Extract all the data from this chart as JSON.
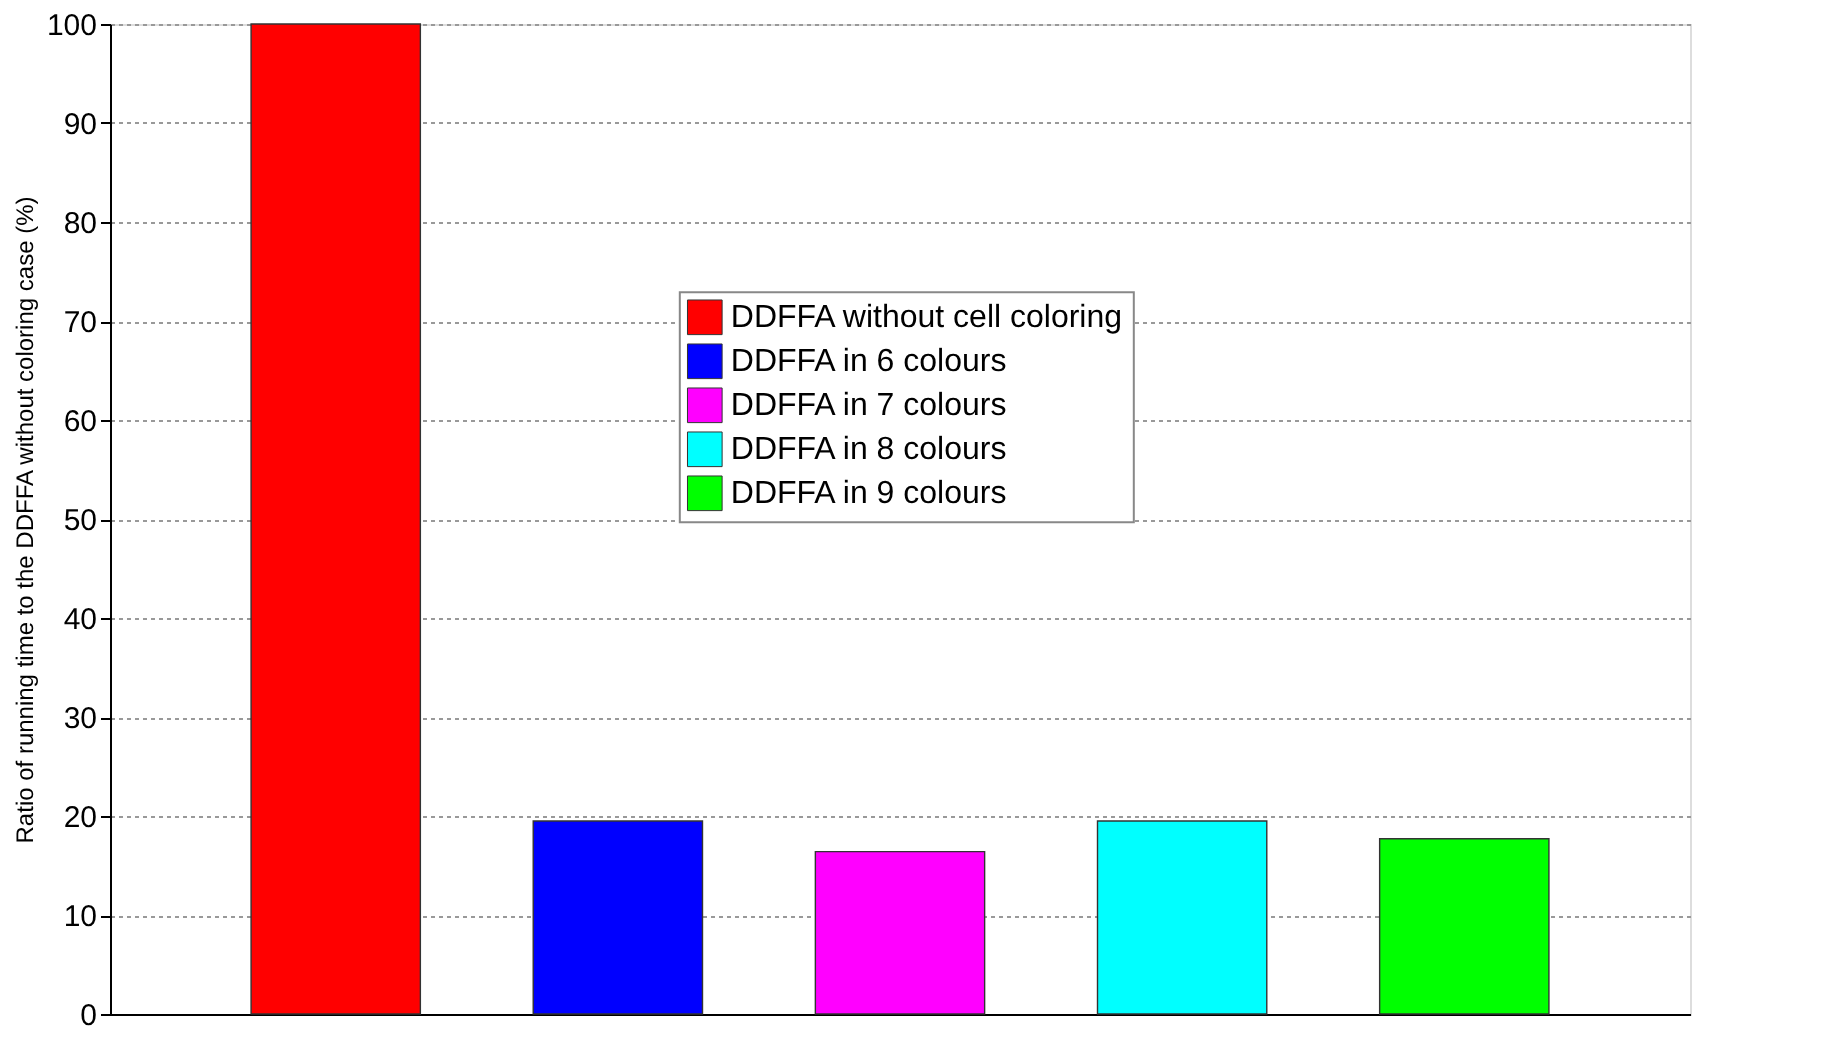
{
  "chart_data": {
    "type": "bar",
    "ylabel": "Ratio of running time to the DDFFA without coloring case (%)",
    "categories": [
      null,
      null,
      null,
      null,
      null
    ],
    "series": [
      {
        "name": "DDFFA without cell coloring",
        "color": "#ff0000",
        "values": [
          100,
          null,
          null,
          null,
          null
        ]
      },
      {
        "name": "DDFFA in 6 colours",
        "color": "#0000ff",
        "values": [
          null,
          19.5,
          null,
          null,
          null
        ]
      },
      {
        "name": "DDFFA in 7 colours",
        "color": "#ff00ff",
        "values": [
          null,
          null,
          16.4,
          null,
          null
        ]
      },
      {
        "name": "DDFFA in 8 colours",
        "color": "#00ffff",
        "values": [
          null,
          null,
          null,
          19.5,
          null
        ]
      },
      {
        "name": "DDFFA in 9 colours",
        "color": "#00ff00",
        "values": [
          null,
          null,
          null,
          null,
          17.7
        ]
      }
    ],
    "ylim": [
      0,
      100
    ],
    "yticks": [
      0,
      10,
      20,
      30,
      40,
      50,
      60,
      70,
      80,
      90,
      100
    ],
    "grid": "y",
    "legend": "top",
    "tick_labels": "y"
  }
}
